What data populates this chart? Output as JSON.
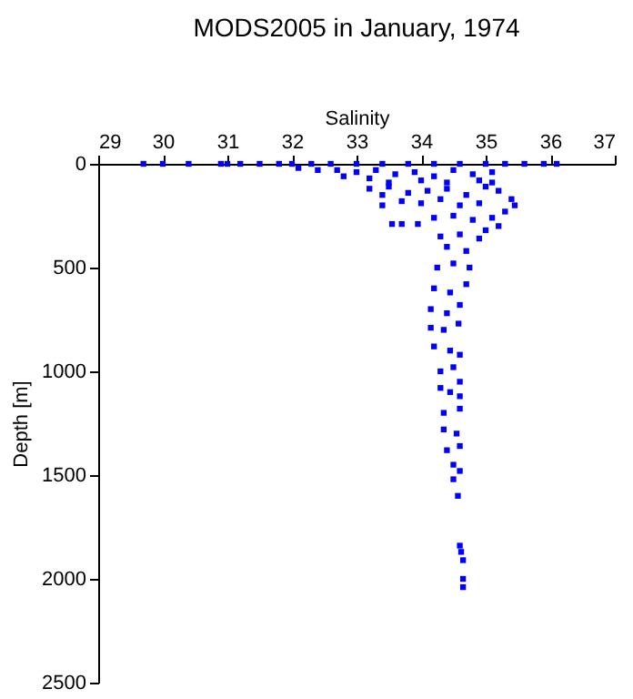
{
  "chart_data": {
    "type": "scatter",
    "title": "MODS2005 in January, 1974",
    "xlabel": "Salinity",
    "ylabel": "Depth [m]",
    "xlim": [
      29,
      37
    ],
    "xticks": [
      29,
      30,
      31,
      32,
      33,
      34,
      35,
      36,
      37
    ],
    "ylim": [
      2500,
      0
    ],
    "yticks": [
      0,
      500,
      1000,
      1500,
      2000,
      2500
    ],
    "grid": false,
    "marker": "square",
    "series": [
      {
        "color": "#0000ff",
        "x": [
          29.7,
          30.0,
          30.4,
          30.9,
          31.0,
          31.2,
          31.5,
          31.8,
          32.0,
          32.3,
          32.6,
          33.0,
          33.4,
          33.8,
          34.2,
          34.6,
          35.0,
          35.3,
          35.6,
          35.9,
          36.1,
          32.1,
          32.4,
          32.7,
          33.0,
          33.3,
          33.6,
          33.9,
          34.2,
          34.5,
          34.8,
          35.1,
          32.8,
          33.2,
          33.5,
          34.0,
          34.4,
          34.9,
          35.1,
          33.2,
          33.5,
          33.8,
          34.1,
          34.4,
          34.7,
          35.0,
          35.2,
          35.4,
          35.45,
          35.3,
          33.4,
          33.4,
          33.7,
          34.0,
          34.3,
          34.6,
          34.9,
          33.55,
          33.7,
          33.95,
          34.2,
          34.5,
          34.8,
          35.1,
          35.2,
          34.3,
          34.6,
          34.9,
          35.0,
          34.4,
          34.7,
          34.25,
          34.5,
          34.75,
          34.2,
          34.45,
          34.7,
          34.15,
          34.4,
          34.6,
          34.15,
          34.35,
          34.58,
          34.2,
          34.45,
          34.6,
          34.3,
          34.5,
          34.6,
          34.3,
          34.45,
          34.6,
          34.35,
          34.6,
          34.35,
          34.55,
          34.4,
          34.6,
          34.5,
          34.6,
          34.5,
          34.57,
          34.6,
          34.62,
          34.65,
          34.65,
          34.65
        ],
        "values": [
          0,
          0,
          0,
          0,
          0,
          0,
          0,
          0,
          0,
          0,
          0,
          0,
          0,
          0,
          0,
          0,
          0,
          0,
          0,
          0,
          0,
          20,
          30,
          30,
          40,
          30,
          50,
          40,
          60,
          30,
          50,
          40,
          60,
          70,
          90,
          80,
          90,
          80,
          90,
          120,
          110,
          140,
          130,
          120,
          150,
          110,
          130,
          170,
          200,
          230,
          150,
          200,
          180,
          190,
          170,
          200,
          190,
          290,
          290,
          290,
          260,
          250,
          270,
          260,
          300,
          350,
          340,
          360,
          320,
          400,
          420,
          500,
          480,
          500,
          600,
          620,
          580,
          700,
          720,
          680,
          790,
          800,
          770,
          880,
          900,
          920,
          1000,
          980,
          1050,
          1080,
          1100,
          1120,
          1200,
          1180,
          1280,
          1300,
          1380,
          1360,
          1450,
          1480,
          1520,
          1600,
          1840,
          1870,
          1910,
          2000,
          2040
        ]
      }
    ]
  }
}
